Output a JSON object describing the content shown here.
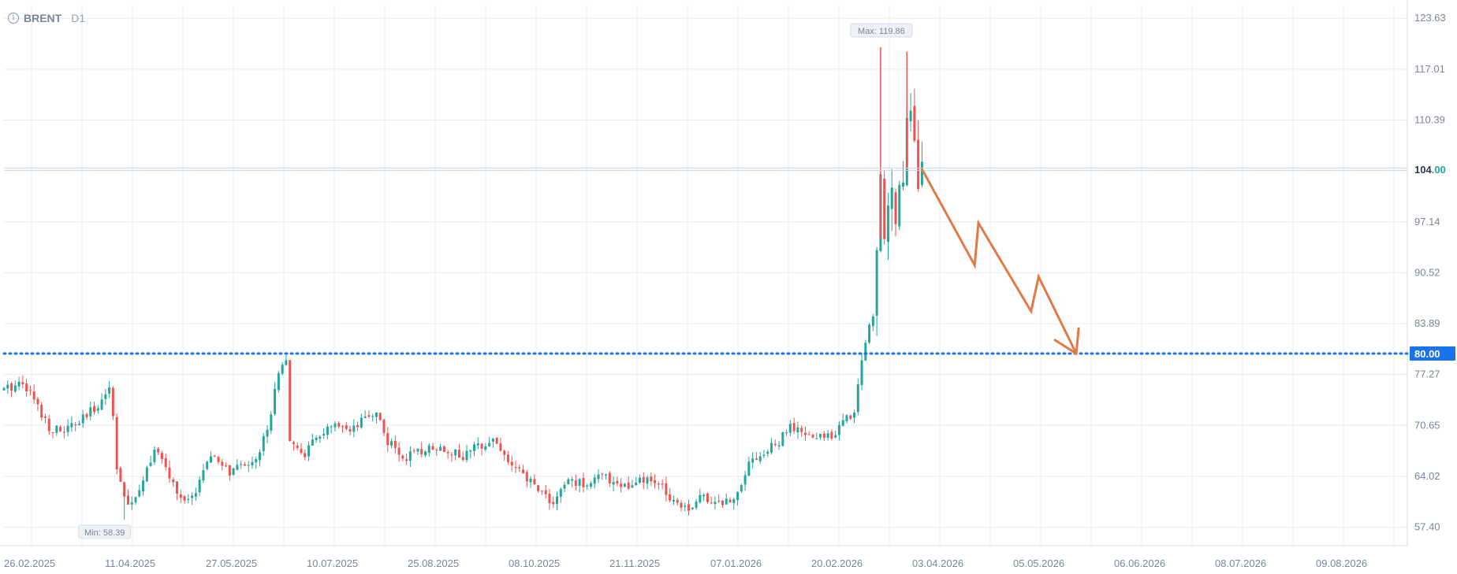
{
  "header": {
    "symbol": "BRENT",
    "timeframe": "D1",
    "info_icon": "info-icon"
  },
  "colors": {
    "bull": "#26a69a",
    "bear": "#ef5350",
    "grid": "#e6ecf5",
    "level_line": "#1a73e8",
    "current_price_bg": "#ffffff",
    "current_price_text": "#26a69a",
    "arrow": "#e07a45",
    "axis_text": "#7b8597"
  },
  "chart_data": {
    "type": "candlestick",
    "title": "BRENT",
    "timeframe": "D1",
    "x_tick_labels": [
      "26.02.2025",
      "11.04.2025",
      "27.05.2025",
      "10.07.2025",
      "25.08.2025",
      "08.10.2025",
      "21.11.2025",
      "07.01.2026",
      "20.02.2026",
      "03.04.2026",
      "05.05.2026",
      "06.06.2026",
      "08.07.2026",
      "09.08.2026"
    ],
    "y_tick_labels": [
      "123.63",
      "117.01",
      "110.39",
      "97.14",
      "90.52",
      "83.89",
      "77.27",
      "70.65",
      "64.02",
      "57.40"
    ],
    "ylim": [
      55.0,
      125.5
    ],
    "xlim": [
      0,
      373
    ],
    "grid": true,
    "current_price": "104.00",
    "horizontal_level": {
      "value": 80.0,
      "label": "80.00"
    },
    "max_label": "Max: 119.86",
    "max_value": 119.86,
    "min_label": "Min: 58.39",
    "min_value": 58.39,
    "price_path": [
      [
        0,
        75.2
      ],
      [
        5,
        76.5
      ],
      [
        8,
        74.0
      ],
      [
        12,
        70.5
      ],
      [
        15,
        69.8
      ],
      [
        20,
        71.0
      ],
      [
        24,
        72.8
      ],
      [
        28,
        75.5
      ],
      [
        29,
        72.0
      ],
      [
        30,
        65.5
      ],
      [
        32,
        61.0
      ],
      [
        34,
        60.0
      ],
      [
        37,
        64.0
      ],
      [
        40,
        67.5
      ],
      [
        43,
        65.0
      ],
      [
        46,
        62.0
      ],
      [
        48,
        60.5
      ],
      [
        50,
        61.0
      ],
      [
        53,
        65.0
      ],
      [
        56,
        66.5
      ],
      [
        60,
        64.5
      ],
      [
        64,
        65.5
      ],
      [
        68,
        67.0
      ],
      [
        71,
        72.5
      ],
      [
        73,
        78.0
      ],
      [
        75,
        79.5
      ],
      [
        76,
        68.0
      ],
      [
        80,
        67.0
      ],
      [
        84,
        69.5
      ],
      [
        88,
        70.5
      ],
      [
        92,
        69.5
      ],
      [
        96,
        71.5
      ],
      [
        99,
        72.5
      ],
      [
        102,
        68.5
      ],
      [
        106,
        66.5
      ],
      [
        110,
        67.0
      ],
      [
        114,
        68.0
      ],
      [
        118,
        67.5
      ],
      [
        122,
        66.5
      ],
      [
        126,
        68.0
      ],
      [
        130,
        69.0
      ],
      [
        134,
        66.0
      ],
      [
        138,
        64.0
      ],
      [
        142,
        62.5
      ],
      [
        146,
        60.5
      ],
      [
        150,
        63.5
      ],
      [
        154,
        63.0
      ],
      [
        158,
        64.0
      ],
      [
        162,
        63.5
      ],
      [
        166,
        62.5
      ],
      [
        170,
        63.5
      ],
      [
        174,
        63.0
      ],
      [
        178,
        61.0
      ],
      [
        182,
        60.0
      ],
      [
        186,
        61.5
      ],
      [
        190,
        60.5
      ],
      [
        194,
        61.0
      ],
      [
        198,
        66.0
      ],
      [
        202,
        67.0
      ],
      [
        206,
        68.5
      ],
      [
        209,
        70.5
      ],
      [
        212,
        69.5
      ],
      [
        216,
        69.0
      ],
      [
        220,
        69.5
      ],
      [
        223,
        71.0
      ],
      [
        226,
        72.5
      ],
      [
        227,
        76.0
      ],
      [
        228,
        79.0
      ],
      [
        229,
        82.0
      ],
      [
        231,
        85.0
      ],
      [
        232,
        95.0
      ],
      [
        233,
        102.0
      ],
      [
        234,
        95.0
      ],
      [
        235,
        97.0
      ],
      [
        236,
        100.5
      ],
      [
        237,
        99.0
      ],
      [
        238,
        104.0
      ],
      [
        239,
        103.0
      ],
      [
        240,
        110.0
      ],
      [
        241,
        112.5
      ],
      [
        242,
        107.0
      ],
      [
        243,
        103.0
      ],
      [
        244,
        105.5
      ]
    ],
    "annotation_arrow": {
      "points": [
        [
          244,
          104.0
        ],
        [
          258,
          91.5
        ],
        [
          259,
          97.0
        ],
        [
          273,
          85.5
        ],
        [
          275,
          90.0
        ],
        [
          285,
          80.0
        ]
      ],
      "description": "zigzag downward projection from 104 to 80"
    }
  }
}
